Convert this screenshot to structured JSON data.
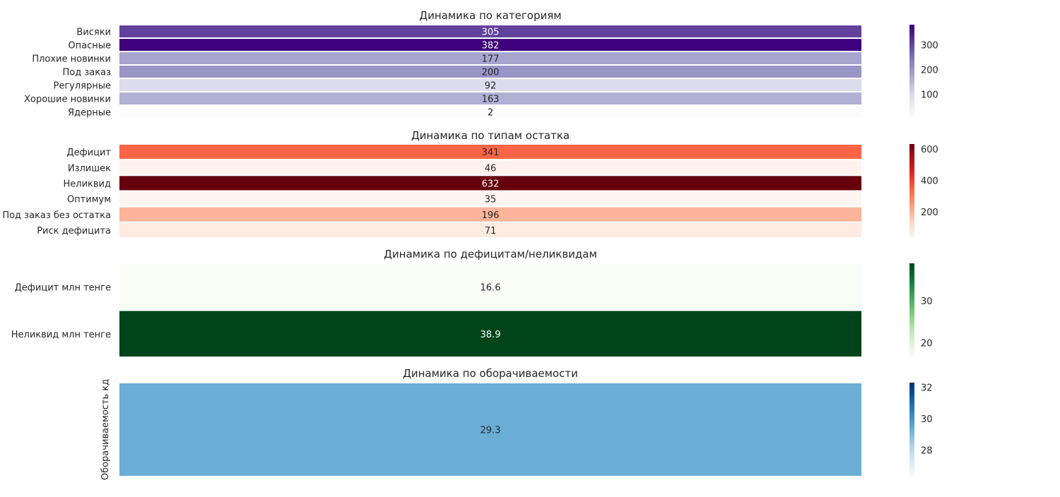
{
  "chart_data": [
    {
      "type": "heatmap",
      "title": "Динамика по категориям",
      "colormap": "Purples",
      "rows": [
        "Висяки",
        "Опасные",
        "Плохие новинки",
        "Под заказ",
        "Регулярные",
        "Хорошие новинки",
        "Ядерные"
      ],
      "values": [
        305,
        382,
        177,
        200,
        92,
        163,
        2
      ],
      "labels": [
        "305",
        "382",
        "177",
        "200",
        "92",
        "163",
        "2"
      ],
      "colorbar": {
        "ticks": [
          100,
          200,
          300
        ],
        "tick_labels": [
          "100",
          "200",
          "300"
        ],
        "range": [
          2,
          382
        ]
      }
    },
    {
      "type": "heatmap",
      "title": "Динамика по типам остатка",
      "colormap": "Reds",
      "rows": [
        "Дефицит",
        "Излишек",
        "Неликвид",
        "Оптимум",
        "Под заказ без остатка",
        "Риск дефицита"
      ],
      "values": [
        341,
        46,
        632,
        35,
        196,
        71
      ],
      "labels": [
        "341",
        "46",
        "632",
        "35",
        "196",
        "71"
      ],
      "colorbar": {
        "ticks": [
          200,
          400,
          600
        ],
        "tick_labels": [
          "200",
          "400",
          "600"
        ],
        "range": [
          35,
          632
        ]
      }
    },
    {
      "type": "heatmap",
      "title": "Динамика по дефицитам/неликвидам",
      "colormap": "Greens",
      "rows": [
        "Дефицит млн тенге",
        "Неликвид млн тенге"
      ],
      "values": [
        16.6,
        38.9
      ],
      "labels": [
        "16.6",
        "38.9"
      ],
      "colorbar": {
        "ticks": [
          20,
          30
        ],
        "tick_labels": [
          "20",
          "30"
        ],
        "range": [
          16.6,
          38.9
        ]
      }
    },
    {
      "type": "heatmap",
      "title": "Динамика по оборачиваемости",
      "colormap": "Blues",
      "rows": [
        "Оборачиваемость кд"
      ],
      "values": [
        29.3
      ],
      "labels": [
        "29.3"
      ],
      "colorbar": {
        "ticks": [
          28,
          30,
          32
        ],
        "tick_labels": [
          "28",
          "30",
          "32"
        ],
        "range": [
          26.3,
          32.3
        ]
      }
    }
  ],
  "colors": {
    "Purples": [
      "#fcfbfd",
      "#efedf5",
      "#dadaeb",
      "#bcbddc",
      "#9e9ac8",
      "#807dba",
      "#6a51a3",
      "#54278f",
      "#3f007d"
    ],
    "Reds": [
      "#fff5f0",
      "#fee0d2",
      "#fcbba1",
      "#fc9272",
      "#fb6a4a",
      "#ef3b2c",
      "#cb181d",
      "#a50f15",
      "#67000d"
    ],
    "Greens": [
      "#f7fcf5",
      "#e5f5e0",
      "#c7e9c0",
      "#a1d99b",
      "#74c476",
      "#41ab5d",
      "#238b45",
      "#006d2c",
      "#00441b"
    ],
    "Blues": [
      "#f7fbff",
      "#deebf7",
      "#c6dbef",
      "#9ecae1",
      "#6baed6",
      "#4292c6",
      "#2171b5",
      "#08519c",
      "#08306b"
    ]
  }
}
